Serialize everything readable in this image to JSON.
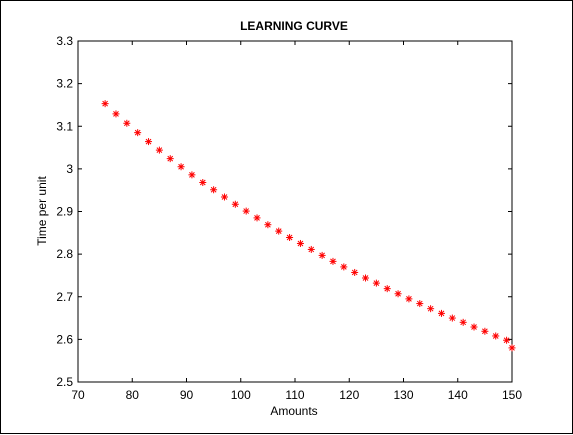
{
  "chart_data": {
    "type": "scatter",
    "title": "LEARNING CURVE",
    "xlabel": "Amounts",
    "ylabel": "Time per unit",
    "xlim": [
      70,
      150
    ],
    "ylim": [
      2.5,
      3.3
    ],
    "xticks": [
      "70",
      "80",
      "90",
      "100",
      "110",
      "120",
      "130",
      "140",
      "150"
    ],
    "yticks": [
      "2.5",
      "2.6",
      "2.7",
      "2.8",
      "2.9",
      "3",
      "3.1",
      "3.2",
      "3.3"
    ],
    "grid": false,
    "marker": "*",
    "marker_color": "#ff0000",
    "series": [
      {
        "x": [
          75,
          77,
          79,
          81,
          83,
          85,
          87,
          89,
          91,
          93,
          95,
          97,
          99,
          101,
          103,
          105,
          107,
          109,
          111,
          113,
          115,
          117,
          119,
          121,
          123,
          125,
          127,
          129,
          131,
          133,
          135,
          137,
          139,
          141,
          143,
          145,
          147,
          149,
          150
        ],
        "y": [
          3.153,
          3.129,
          3.107,
          3.085,
          3.064,
          3.044,
          3.024,
          3.005,
          2.986,
          2.968,
          2.951,
          2.934,
          2.917,
          2.901,
          2.885,
          2.869,
          2.854,
          2.839,
          2.825,
          2.811,
          2.797,
          2.783,
          2.77,
          2.757,
          2.744,
          2.732,
          2.719,
          2.707,
          2.695,
          2.684,
          2.672,
          2.661,
          2.65,
          2.64,
          2.629,
          2.619,
          2.608,
          2.598,
          2.58
        ]
      }
    ]
  }
}
